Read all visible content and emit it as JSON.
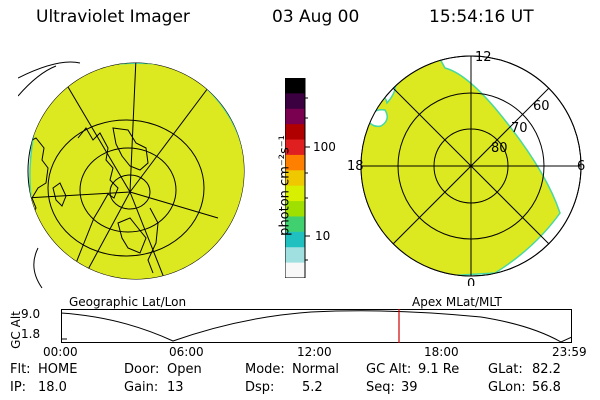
{
  "header": {
    "title": "Ultraviolet Imager",
    "date": "03 Aug 00",
    "time": "15:54:16 UT"
  },
  "panels": {
    "geo_label": "Geographic Lat/Lon",
    "mag_label": "Apex MLat/MLT"
  },
  "colorbar": {
    "unit_label": "photon cm⁻²s⁻¹",
    "ticks": [
      "100",
      "10"
    ],
    "colors": [
      "#000000",
      "#3a0040",
      "#7a0050",
      "#b00000",
      "#e02020",
      "#ff8000",
      "#f0c800",
      "#d8f000",
      "#a0e000",
      "#40d070",
      "#20c0c0",
      "#a0e0e0",
      "#f8f8f8"
    ]
  },
  "mag_grid": {
    "mlt_labels": [
      "12",
      "18",
      "6",
      "0"
    ],
    "lat_labels": [
      "60",
      "70",
      "80"
    ]
  },
  "altitude_plot": {
    "ylabel": "GC Alt",
    "ytick_top": "9.0",
    "ytick_bottom": "1.8",
    "xticks": [
      "00:00",
      "06:00",
      "12:00",
      "18:00",
      "23:59"
    ],
    "current_time_marker": "15:54"
  },
  "footer": {
    "flt_label": "Flt:",
    "flt_value": "HOME",
    "ip_label": "IP:",
    "ip_value": "18.0",
    "door_label": "Door:",
    "door_value": "Open",
    "gain_label": "Gain:",
    "gain_value": "13",
    "mode_label": "Mode:",
    "mode_value": "Normal",
    "dsp_label": "Dsp:",
    "dsp_value": "5.2",
    "gcalt_label": "GC Alt:",
    "gcalt_value": "9.1 Re",
    "seq_label": "Seq:",
    "seq_value": "39",
    "glat_label": "GLat:",
    "glat_value": "82.2",
    "glon_label": "GLon:",
    "glon_value": "56.8"
  },
  "colors": {
    "image_fill": "#dce820",
    "image_edge": "#48d8a0",
    "marker": "#d00000"
  }
}
